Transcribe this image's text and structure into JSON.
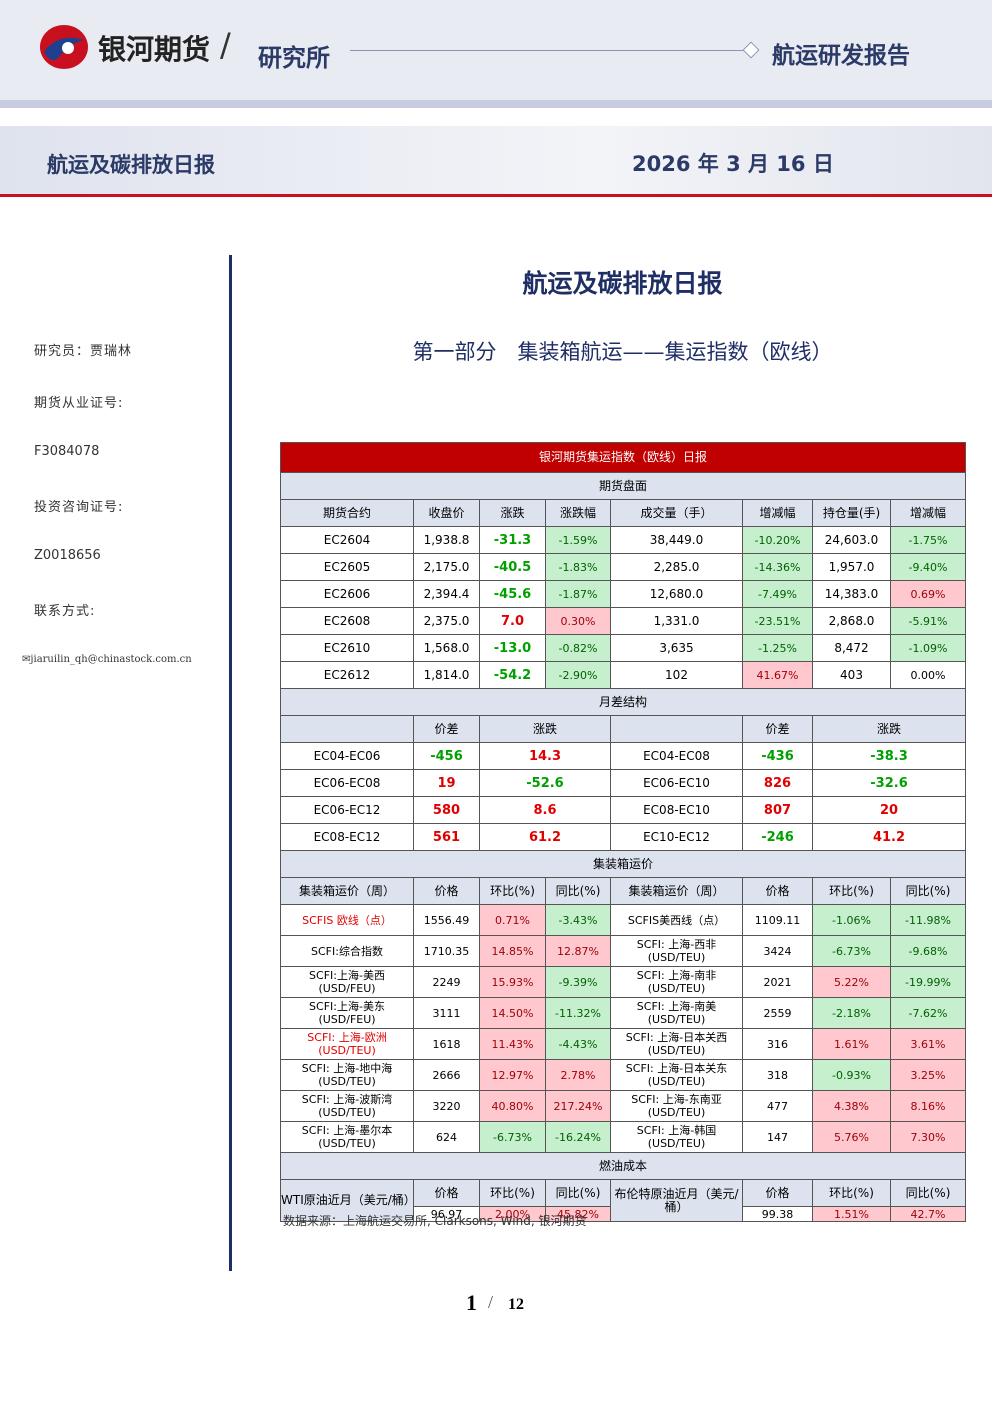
{
  "header": {
    "brand": "银河期货",
    "institute": "研究所",
    "report_type": "航运研发报告"
  },
  "banner": {
    "title": "航运及碳排放日报",
    "date": "2026 年 3 月 16 日"
  },
  "sidebar": {
    "researcher": "研究员：贾瑞林",
    "license_label": "期货从业证号:",
    "license": "F3084078",
    "consult_label": "投资咨询证号:",
    "consult": "Z0018656",
    "contact_label": "联系方式:",
    "email": "jiaruilin_qh@chinastock.com.cn"
  },
  "title": "航运及碳排放日报",
  "subtitle": "第一部分　集装箱航运——集运指数（欧线）",
  "table": {
    "title": "银河期货集运指数（欧线）日报",
    "futures": {
      "section": "期货盘面",
      "header": [
        "期货合约",
        "收盘价",
        "涨跌",
        "涨跌幅",
        "成交量（手）",
        "增减幅",
        "持仓量(手)",
        "增减幅"
      ],
      "rows": [
        [
          "EC2604",
          "1,938.8",
          "-31.3",
          "-1.59%",
          "38,449.0",
          "-10.20%",
          "24,603.0",
          "-1.75%"
        ],
        [
          "EC2605",
          "2,175.0",
          "-40.5",
          "-1.83%",
          "2,285.0",
          "-14.36%",
          "1,957.0",
          "-9.40%"
        ],
        [
          "EC2606",
          "2,394.4",
          "-45.6",
          "-1.87%",
          "12,680.0",
          "-7.49%",
          "14,383.0",
          "0.69%"
        ],
        [
          "EC2608",
          "2,375.0",
          "7.0",
          "0.30%",
          "1,331.0",
          "-23.51%",
          "2,868.0",
          "-5.91%"
        ],
        [
          "EC2610",
          "1,568.0",
          "-13.0",
          "-0.82%",
          "3,635",
          "-1.25%",
          "8,472",
          "-1.09%"
        ],
        [
          "EC2612",
          "1,814.0",
          "-54.2",
          "-2.90%",
          "102",
          "41.67%",
          "403",
          "0.00%"
        ]
      ]
    },
    "spread": {
      "section": "月差结构",
      "columns": [
        "价差",
        "涨跌"
      ],
      "rows": [
        [
          "EC04-EC06",
          "-456",
          "14.3",
          "EC04-EC08",
          "-436",
          "-38.3"
        ],
        [
          "EC06-EC08",
          "19",
          "-52.6",
          "EC06-EC10",
          "826",
          "-32.6"
        ],
        [
          "EC06-EC12",
          "580",
          "8.6",
          "EC08-EC10",
          "807",
          "20"
        ],
        [
          "EC08-EC12",
          "561",
          "61.2",
          "EC10-EC12",
          "-246",
          "41.2"
        ]
      ]
    },
    "freight": {
      "section": "集装箱运价",
      "header": [
        "集装箱运价（周）",
        "价格",
        "环比(%)",
        "同比(%)",
        "集装箱运价（周）",
        "价格",
        "环比(%)",
        "同比(%)"
      ],
      "rows": [
        [
          "SCFIS 欧线（点）",
          "1556.49",
          "0.71%",
          "-3.43%",
          "SCFIS美西线（点）",
          "1109.11",
          "-1.06%",
          "-11.98%"
        ],
        [
          "SCFI:综合指数",
          "1710.35",
          "14.85%",
          "12.87%",
          "SCFI: 上海-西非\n(USD/TEU)",
          "3424",
          "-6.73%",
          "-9.68%"
        ],
        [
          "SCFI:上海-美西\n(USD/FEU)",
          "2249",
          "15.93%",
          "-9.39%",
          "SCFI: 上海-南非\n(USD/TEU)",
          "2021",
          "5.22%",
          "-19.99%"
        ],
        [
          "SCFI:上海-美东\n(USD/FEU)",
          "3111",
          "14.50%",
          "-11.32%",
          "SCFI: 上海-南美\n(USD/TEU)",
          "2559",
          "-2.18%",
          "-7.62%"
        ],
        [
          "SCFI: 上海-欧洲\n(USD/TEU)",
          "1618",
          "11.43%",
          "-4.43%",
          "SCFI: 上海-日本关西\n(USD/TEU)",
          "316",
          "1.61%",
          "3.61%"
        ],
        [
          "SCFI: 上海-地中海\n(USD/TEU)",
          "2666",
          "12.97%",
          "2.78%",
          "SCFI: 上海-日本关东\n(USD/TEU)",
          "318",
          "-0.93%",
          "3.25%"
        ],
        [
          "SCFI: 上海-波斯湾\n(USD/TEU)",
          "3220",
          "40.80%",
          "217.24%",
          "SCFI: 上海-东南亚\n(USD/TEU)",
          "477",
          "4.38%",
          "8.16%"
        ],
        [
          "SCFI: 上海-墨尔本\n(USD/TEU)",
          "624",
          "-6.73%",
          "-16.24%",
          "SCFI: 上海-韩国\n(USD/TEU)",
          "147",
          "5.76%",
          "7.30%"
        ]
      ]
    },
    "fuel": {
      "section": "燃油成本",
      "names": [
        "WTI原油近月（美元/桶）",
        "布伦特原油近月（美元/桶）"
      ],
      "columns": [
        "价格",
        "环比(%)",
        "同比(%)"
      ],
      "values": [
        [
          "96.97",
          "2.00%",
          "45.82%"
        ],
        [
          "99.38",
          "1.51%",
          "42.7%"
        ]
      ]
    },
    "source": "数据来源：上海航运交易所, Clarksons, Wind, 银河期货"
  },
  "footer": {
    "page": "1",
    "total": "12"
  }
}
